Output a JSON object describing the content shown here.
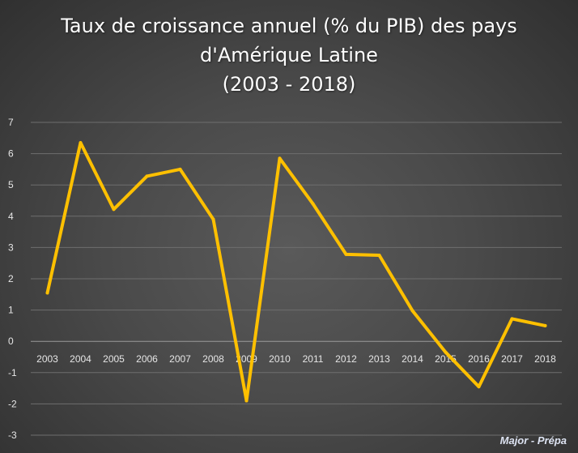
{
  "chart_data": {
    "type": "line",
    "title_lines": [
      "Taux de croissance annuel (% du PIB) des pays",
      "d'Amérique Latine",
      "(2003 - 2018)"
    ],
    "categories": [
      "2003",
      "2004",
      "2005",
      "2006",
      "2007",
      "2008",
      "2009",
      "2010",
      "2011",
      "2012",
      "2013",
      "2014",
      "2015",
      "2016",
      "2017",
      "2018"
    ],
    "series": [
      {
        "values": [
          1.55,
          6.35,
          4.22,
          5.28,
          5.5,
          3.9,
          -1.9,
          5.85,
          4.4,
          2.78,
          2.75,
          0.98,
          -0.35,
          -1.45,
          0.72,
          0.5
        ],
        "color": "#FFC000"
      }
    ],
    "ylim": [
      -3,
      7
    ],
    "yticks": [
      7,
      6,
      5,
      4,
      3,
      2,
      1,
      0,
      -1,
      -2,
      -3
    ],
    "grid": true,
    "legend": "none"
  },
  "watermark": "Major - Prépa",
  "colors": {
    "line": "#FFC000",
    "background": "#4a4a4a",
    "text": "#ffffff"
  }
}
